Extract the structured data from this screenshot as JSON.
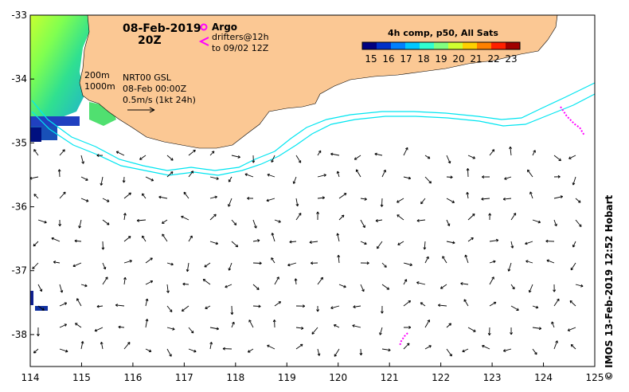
{
  "map": {
    "title_date": "08-Feb-2019",
    "title_time": "20Z",
    "argo_label": "Argo",
    "drifters_label": "drifters@12h",
    "drifters_range": "to 09/02 12Z",
    "isobath_200": "200m",
    "isobath_1000": "1000m",
    "altimetry_product": "NRT00 GSL",
    "altimetry_time": "08-Feb 00:00Z",
    "scale_label": "0.5m/s (1kt 24h)",
    "credit": "© IMOS 13-Feb-2019 12:52 Hobart",
    "colorbar": {
      "title": "4h comp, p50, All Sats",
      "ticks": [
        "15",
        "16",
        "17",
        "18",
        "19",
        "20",
        "21",
        "22",
        "23"
      ],
      "min": 14.5,
      "max": 23.5,
      "colors": [
        "#000080",
        "#0030c8",
        "#0080ff",
        "#00c8ff",
        "#30ffd0",
        "#80ff80",
        "#d0ff30",
        "#ffd000",
        "#ff8000",
        "#ff2000",
        "#a00000"
      ]
    },
    "x_axis": {
      "min": 114,
      "max": 125,
      "ticks": [
        "114",
        "115",
        "116",
        "117",
        "118",
        "119",
        "120",
        "121",
        "122",
        "123",
        "124",
        "125"
      ]
    },
    "y_axis": {
      "min": -38.5,
      "max": -33,
      "ticks": [
        "-33",
        "-34",
        "-35",
        "-36",
        "-37",
        "-38"
      ]
    },
    "colors": {
      "land": "#fbc894",
      "isobath": "#00e5f0",
      "drifter": "#ff00ff",
      "vector": "#000000"
    }
  }
}
